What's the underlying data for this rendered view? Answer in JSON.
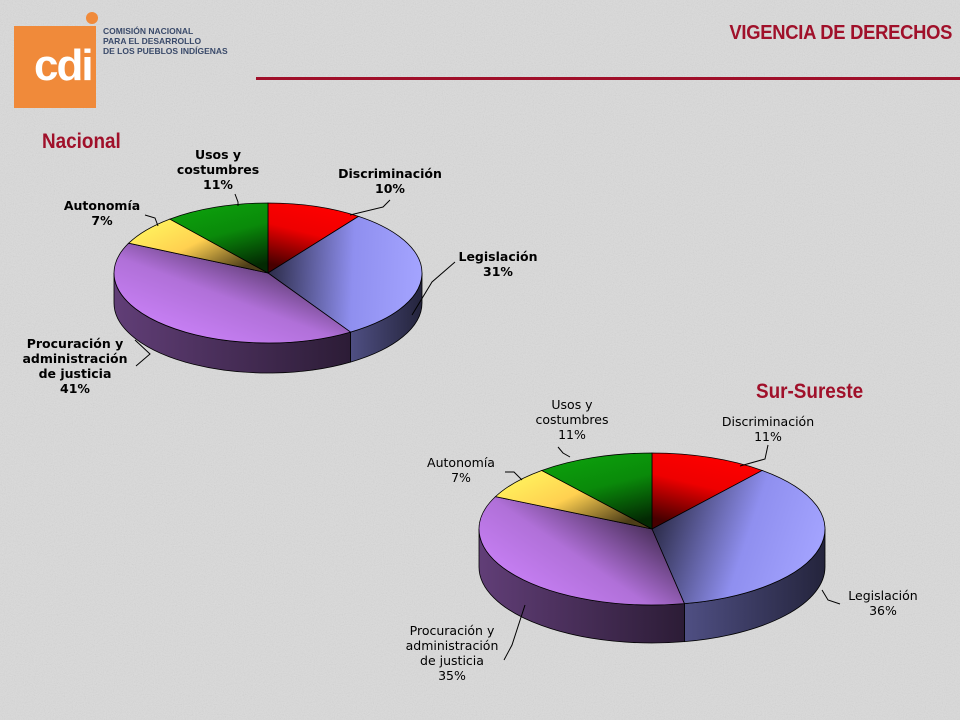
{
  "header": {
    "org_lines": [
      "COMISIÓN NACIONAL",
      "PARA EL DESARROLLO",
      "DE LOS PUEBLOS INDÍGENAS"
    ],
    "logo_letters": "cdi",
    "page_title": "VIGENCIA DE DERECHOS",
    "accent_color": "#a0102a",
    "logo_color": "#f08a3a"
  },
  "chart_data": [
    {
      "type": "pie",
      "title": "Nacional",
      "style": "3d",
      "slices": [
        {
          "label_lines": [
            "Discriminación",
            "10%"
          ],
          "value": 10,
          "color": "#ee0000"
        },
        {
          "label_lines": [
            "Legislación",
            "31%"
          ],
          "value": 31,
          "color": "#8f8fef"
        },
        {
          "label_lines": [
            "Procuración y",
            "administración",
            "de justicia",
            "41%"
          ],
          "value": 41,
          "color": "#b070d8"
        },
        {
          "label_lines": [
            "Autonomía",
            "7%"
          ],
          "value": 7,
          "color": "#ffd050"
        },
        {
          "label_lines": [
            "Usos y",
            "costumbres",
            "11%"
          ],
          "value": 11,
          "color": "#0a8a0a"
        }
      ]
    },
    {
      "type": "pie",
      "title": "Sur-Sureste",
      "style": "3d",
      "slices": [
        {
          "label_lines": [
            "Discriminación",
            "11%"
          ],
          "value": 11,
          "color": "#ee0000"
        },
        {
          "label_lines": [
            "Legislación",
            "36%"
          ],
          "value": 36,
          "color": "#8f8fef"
        },
        {
          "label_lines": [
            "Procuración y",
            "administración",
            "de justicia",
            "35%"
          ],
          "value": 35,
          "color": "#b070d8"
        },
        {
          "label_lines": [
            "Autonomía",
            "7%"
          ],
          "value": 7,
          "color": "#ffd050"
        },
        {
          "label_lines": [
            "Usos y",
            "costumbres",
            "11%"
          ],
          "value": 11,
          "color": "#0a8a0a"
        }
      ]
    }
  ]
}
